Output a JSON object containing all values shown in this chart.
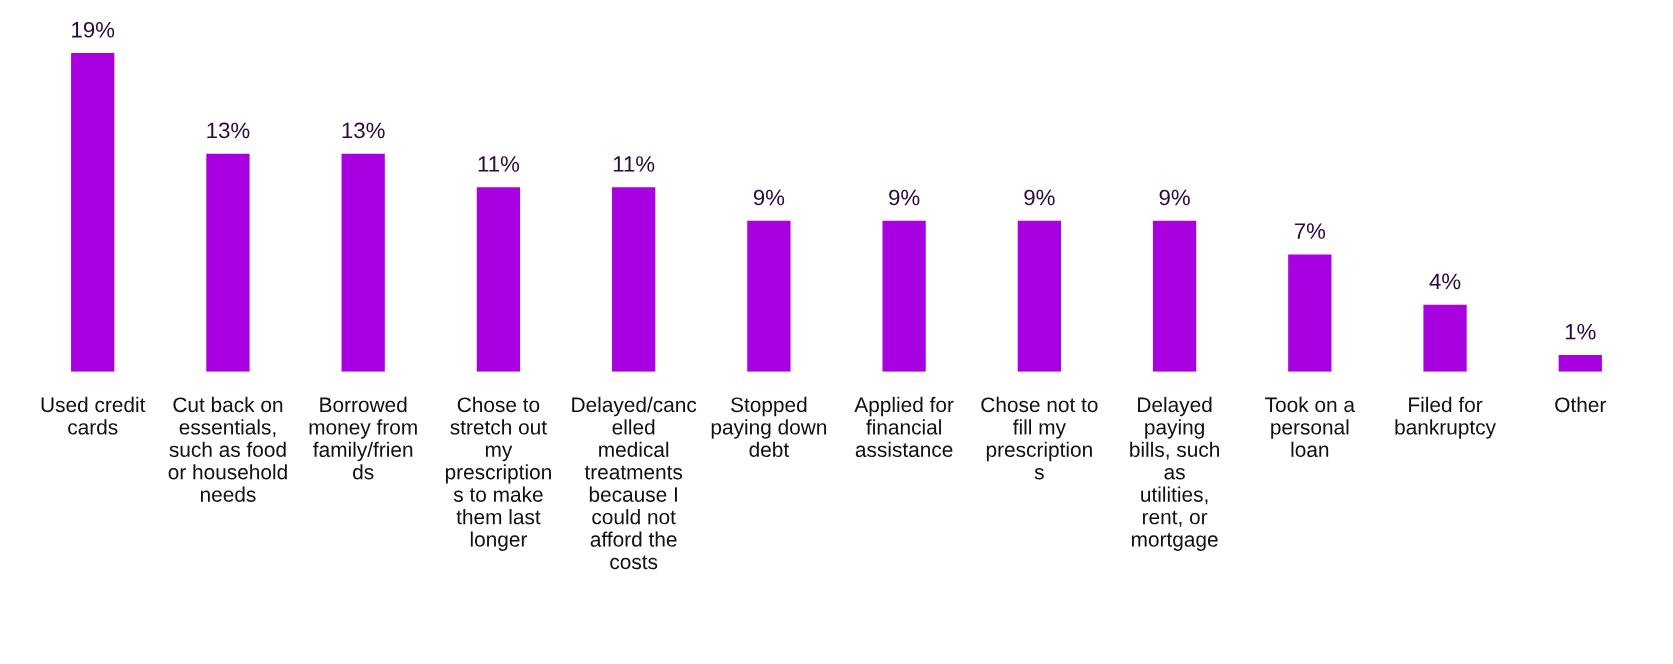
{
  "chart_data": {
    "type": "bar",
    "categories": [
      "Used credit cards",
      "Cut back on essentials, such as food or household needs",
      "Borrowed money from family/friends",
      "Chose to stretch out my prescriptions to make them last longer",
      "Delayed/cancelled medical treatments because I could not afford the costs",
      "Stopped paying down debt",
      "Applied for financial assistance",
      "Chose not to fill my prescriptions",
      "Delayed paying bills, such as utilities, rent, or mortgage",
      "Took on a personal loan",
      "Filed for bankruptcy",
      "Other"
    ],
    "values": [
      19,
      13,
      13,
      11,
      11,
      9,
      9,
      9,
      9,
      7,
      4,
      1
    ],
    "value_labels": [
      "19%",
      "13%",
      "13%",
      "11%",
      "11%",
      "9%",
      "9%",
      "9%",
      "9%",
      "7%",
      "4%",
      "1%"
    ],
    "color": "#a800e0",
    "grid": false,
    "legend": false
  }
}
